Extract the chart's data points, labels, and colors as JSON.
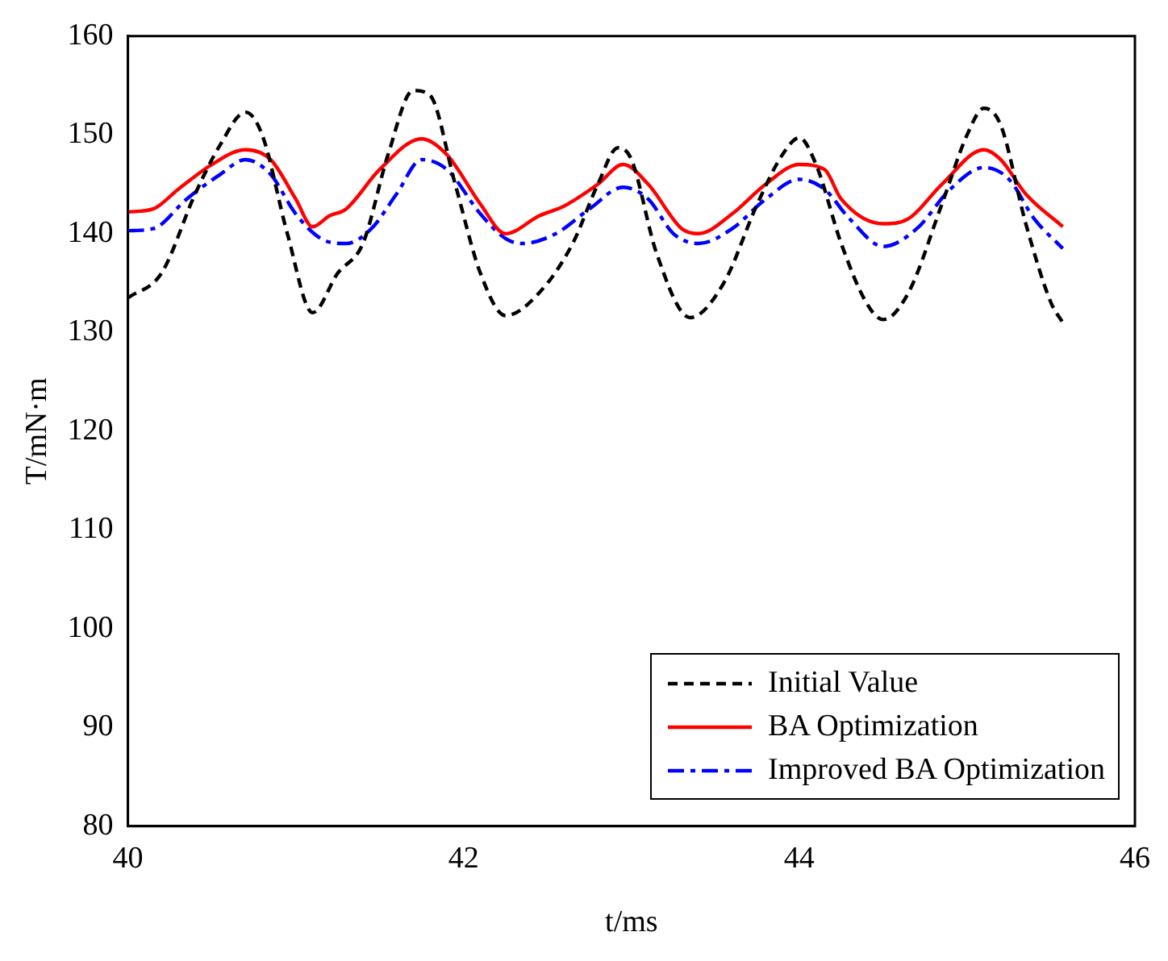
{
  "chart_data": {
    "type": "line",
    "xlabel": "t/ms",
    "ylabel": "T/mN·m",
    "xlim": [
      40,
      46
    ],
    "xticks": [
      40,
      42,
      44,
      46
    ],
    "ylim": [
      80,
      160
    ],
    "yticks": [
      80,
      90,
      100,
      110,
      120,
      130,
      140,
      150,
      160
    ],
    "grid": false,
    "legend": "bottom right",
    "marker": "none",
    "series": [
      {
        "name": "Initial Value",
        "color": "#000000",
        "line_style": "dashed",
        "x": [
          40.0,
          40.2,
          40.4,
          40.55,
          40.7,
          40.8,
          40.95,
          41.1,
          41.25,
          41.4,
          41.55,
          41.7,
          41.8,
          41.95,
          42.1,
          42.25,
          42.45,
          42.65,
          42.8,
          42.92,
          43.0,
          43.15,
          43.35,
          43.55,
          43.75,
          43.9,
          44.0,
          44.1,
          44.25,
          44.4,
          44.5,
          44.65,
          44.85,
          45.0,
          45.1,
          45.2,
          45.35,
          45.5,
          45.57
        ],
        "values": [
          133.5,
          136,
          144,
          149,
          152.3,
          150,
          140,
          132,
          136,
          139,
          148,
          154.5,
          154,
          145,
          136,
          131.7,
          134,
          139,
          145,
          148.7,
          147.5,
          138,
          131.5,
          135,
          143,
          148,
          149.7,
          147,
          139,
          133,
          131.3,
          134,
          143,
          150,
          152.7,
          151,
          141,
          133,
          131
        ]
      },
      {
        "name": "BA Optimization",
        "color": "#ff0000",
        "line_style": "solid",
        "x": [
          40.0,
          40.15,
          40.3,
          40.5,
          40.7,
          40.85,
          41.0,
          41.1,
          41.2,
          41.3,
          41.5,
          41.75,
          41.9,
          42.1,
          42.25,
          42.45,
          42.6,
          42.8,
          42.95,
          43.1,
          43.3,
          43.4,
          43.6,
          43.8,
          44.0,
          44.15,
          44.25,
          44.5,
          44.65,
          44.85,
          45.1,
          45.2,
          45.35,
          45.57
        ],
        "values": [
          142.2,
          142.5,
          144.5,
          147,
          148.5,
          147.5,
          143.5,
          140.7,
          141.8,
          142.5,
          146.5,
          149.6,
          148,
          143,
          140,
          141.8,
          142.8,
          145,
          147,
          145,
          140.5,
          140,
          142,
          145,
          147,
          146.5,
          143.5,
          141,
          141.5,
          145,
          148.5,
          147.5,
          144,
          140.7
        ]
      },
      {
        "name": "Improved BA Optimization",
        "color": "#0000ff",
        "line_style": "dashdot",
        "x": [
          40.0,
          40.15,
          40.35,
          40.55,
          40.7,
          40.85,
          41.0,
          41.15,
          41.3,
          41.45,
          41.6,
          41.75,
          41.9,
          42.1,
          42.25,
          42.35,
          42.55,
          42.75,
          42.95,
          43.1,
          43.25,
          43.4,
          43.6,
          43.8,
          44.0,
          44.15,
          44.3,
          44.5,
          44.7,
          44.9,
          45.1,
          45.25,
          45.4,
          45.57
        ],
        "values": [
          140.3,
          140.5,
          143.5,
          146,
          147.5,
          146,
          142,
          139.5,
          139,
          140.5,
          144,
          147.5,
          146.5,
          142,
          139.5,
          139,
          140,
          142.5,
          144.7,
          143.5,
          140,
          139,
          140.5,
          143.5,
          145.5,
          144.5,
          141.5,
          138.7,
          140.5,
          144.5,
          146.7,
          145.5,
          141.5,
          138.5
        ]
      }
    ]
  }
}
